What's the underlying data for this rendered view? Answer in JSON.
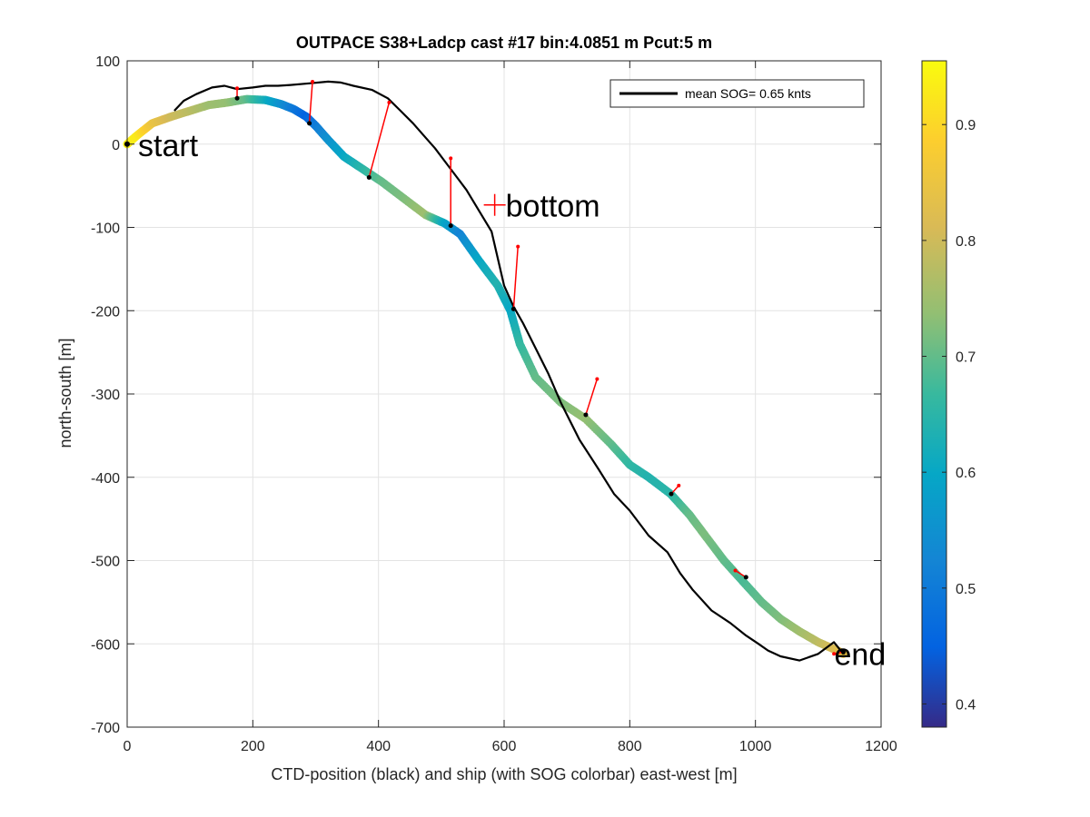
{
  "chart_data": {
    "type": "scatter",
    "title": "OUTPACE S38+Ladcp cast #17 bin:4.0851 m  Pcut:5 m",
    "xlabel": "CTD-position (black) and ship (with SOG colorbar) east-west [m]",
    "ylabel": "north-south [m]",
    "xlim": [
      0,
      1200
    ],
    "ylim": [
      -700,
      100
    ],
    "xticks": [
      0,
      200,
      400,
      600,
      800,
      1000,
      1200
    ],
    "yticks": [
      100,
      0,
      -100,
      -200,
      -300,
      -400,
      -500,
      -600,
      -700
    ],
    "grid": true,
    "legend": {
      "position": "top-right",
      "entries": [
        "mean SOG=  0.65 knts"
      ]
    },
    "colorbar": {
      "range": [
        0.38,
        0.955
      ],
      "ticks": [
        0.4,
        0.5,
        0.6,
        0.7,
        0.8,
        0.9
      ],
      "colormap": "parula"
    },
    "annotations": [
      {
        "text": "start",
        "x": 0,
        "y": 0
      },
      {
        "text": "bottom",
        "x": 585,
        "y": -73
      },
      {
        "text": "end",
        "x": 1140,
        "y": -610
      }
    ],
    "ctd_track": [
      [
        75,
        40
      ],
      [
        90,
        52
      ],
      [
        110,
        60
      ],
      [
        135,
        68
      ],
      [
        155,
        70
      ],
      [
        175,
        66
      ],
      [
        200,
        68
      ],
      [
        220,
        70
      ],
      [
        240,
        70
      ],
      [
        260,
        71
      ],
      [
        290,
        73
      ],
      [
        320,
        75
      ],
      [
        340,
        74
      ],
      [
        360,
        70
      ],
      [
        390,
        65
      ],
      [
        415,
        55
      ],
      [
        435,
        40
      ],
      [
        455,
        25
      ],
      [
        470,
        12
      ],
      [
        490,
        -5
      ],
      [
        505,
        -20
      ],
      [
        520,
        -35
      ],
      [
        540,
        -55
      ],
      [
        560,
        -80
      ],
      [
        580,
        -105
      ],
      [
        600,
        -170
      ],
      [
        615,
        -195
      ],
      [
        630,
        -215
      ],
      [
        650,
        -245
      ],
      [
        670,
        -275
      ],
      [
        690,
        -310
      ],
      [
        720,
        -355
      ],
      [
        750,
        -390
      ],
      [
        775,
        -420
      ],
      [
        800,
        -440
      ],
      [
        830,
        -470
      ],
      [
        860,
        -490
      ],
      [
        880,
        -515
      ],
      [
        900,
        -535
      ],
      [
        930,
        -560
      ],
      [
        960,
        -575
      ],
      [
        985,
        -590
      ],
      [
        1005,
        -600
      ],
      [
        1020,
        -608
      ],
      [
        1040,
        -615
      ],
      [
        1070,
        -620
      ],
      [
        1100,
        -612
      ],
      [
        1125,
        -598
      ],
      [
        1140,
        -612
      ]
    ],
    "ship_track": [
      {
        "x": 0,
        "y": 0,
        "sog": 0.94
      },
      {
        "x": 15,
        "y": 10,
        "sog": 0.93
      },
      {
        "x": 40,
        "y": 25,
        "sog": 0.85
      },
      {
        "x": 70,
        "y": 33,
        "sog": 0.8
      },
      {
        "x": 100,
        "y": 40,
        "sog": 0.78
      },
      {
        "x": 130,
        "y": 47,
        "sog": 0.75
      },
      {
        "x": 160,
        "y": 50,
        "sog": 0.74
      },
      {
        "x": 190,
        "y": 54,
        "sog": 0.7
      },
      {
        "x": 220,
        "y": 53,
        "sog": 0.62
      },
      {
        "x": 245,
        "y": 48,
        "sog": 0.55
      },
      {
        "x": 265,
        "y": 42,
        "sog": 0.5
      },
      {
        "x": 285,
        "y": 33,
        "sog": 0.45
      },
      {
        "x": 300,
        "y": 22,
        "sog": 0.5
      },
      {
        "x": 320,
        "y": 5,
        "sog": 0.55
      },
      {
        "x": 345,
        "y": -15,
        "sog": 0.6
      },
      {
        "x": 375,
        "y": -30,
        "sog": 0.65
      },
      {
        "x": 405,
        "y": -45,
        "sog": 0.7
      },
      {
        "x": 440,
        "y": -65,
        "sog": 0.72
      },
      {
        "x": 475,
        "y": -85,
        "sog": 0.75
      },
      {
        "x": 505,
        "y": -95,
        "sog": 0.6
      },
      {
        "x": 530,
        "y": -108,
        "sog": 0.52
      },
      {
        "x": 560,
        "y": -140,
        "sog": 0.6
      },
      {
        "x": 590,
        "y": -170,
        "sog": 0.64
      },
      {
        "x": 610,
        "y": -200,
        "sog": 0.6
      },
      {
        "x": 625,
        "y": -240,
        "sog": 0.66
      },
      {
        "x": 650,
        "y": -280,
        "sog": 0.7
      },
      {
        "x": 690,
        "y": -310,
        "sog": 0.72
      },
      {
        "x": 730,
        "y": -330,
        "sog": 0.74
      },
      {
        "x": 770,
        "y": -360,
        "sog": 0.7
      },
      {
        "x": 800,
        "y": -385,
        "sog": 0.66
      },
      {
        "x": 830,
        "y": -400,
        "sog": 0.64
      },
      {
        "x": 865,
        "y": -420,
        "sog": 0.65
      },
      {
        "x": 895,
        "y": -445,
        "sog": 0.7
      },
      {
        "x": 920,
        "y": -470,
        "sog": 0.72
      },
      {
        "x": 950,
        "y": -500,
        "sog": 0.7
      },
      {
        "x": 980,
        "y": -525,
        "sog": 0.68
      },
      {
        "x": 1010,
        "y": -550,
        "sog": 0.7
      },
      {
        "x": 1040,
        "y": -570,
        "sog": 0.72
      },
      {
        "x": 1070,
        "y": -585,
        "sog": 0.75
      },
      {
        "x": 1100,
        "y": -598,
        "sog": 0.78
      },
      {
        "x": 1130,
        "y": -608,
        "sog": 0.82
      },
      {
        "x": 1140,
        "y": -612,
        "sog": 0.85
      }
    ],
    "offset_links": [
      {
        "ship": [
          175,
          55
        ],
        "ctd": [
          175,
          67
        ]
      },
      {
        "ship": [
          290,
          25
        ],
        "ctd": [
          295,
          75
        ]
      },
      {
        "ship": [
          385,
          -40
        ],
        "ctd": [
          417,
          50
        ]
      },
      {
        "ship": [
          515,
          -98
        ],
        "ctd": [
          515,
          -17
        ]
      },
      {
        "ship": [
          615,
          -198
        ],
        "ctd": [
          622,
          -123
        ]
      },
      {
        "ship": [
          730,
          -325
        ],
        "ctd": [
          748,
          -282
        ]
      },
      {
        "ship": [
          866,
          -420
        ],
        "ctd": [
          878,
          -410
        ]
      },
      {
        "ship": [
          985,
          -520
        ],
        "ctd": [
          968,
          -512
        ]
      },
      {
        "ship": [
          1140,
          -610
        ],
        "ctd": [
          1125,
          -612
        ]
      }
    ]
  }
}
